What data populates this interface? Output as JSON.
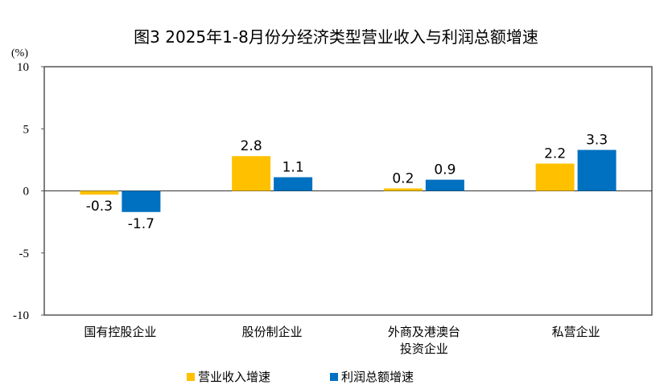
{
  "chart_data": {
    "type": "bar",
    "title": "图3 2025年1-8月份分经济类型营业收入与利润总额增速",
    "ylabel": "(%)",
    "ylim": [
      -10,
      10
    ],
    "yticks": [
      "10",
      "5",
      "0",
      "-5",
      "-10"
    ],
    "categories": [
      [
        "国有控股企业"
      ],
      [
        "股份制企业"
      ],
      [
        "外商及港澳台",
        "投资企业"
      ],
      [
        "私营企业"
      ]
    ],
    "series": [
      {
        "name": "营业收入增速",
        "color": "#FFC000",
        "values": [
          -0.3,
          2.8,
          0.2,
          2.2
        ],
        "labels": [
          "-0.3",
          "2.8",
          "0.2",
          "2.2"
        ]
      },
      {
        "name": "利润总额增速",
        "color": "#0070C0",
        "values": [
          -1.7,
          1.1,
          0.9,
          3.3
        ],
        "labels": [
          "-1.7",
          "1.1",
          "0.9",
          "3.3"
        ]
      }
    ],
    "legend": "bottom",
    "grid": false
  }
}
